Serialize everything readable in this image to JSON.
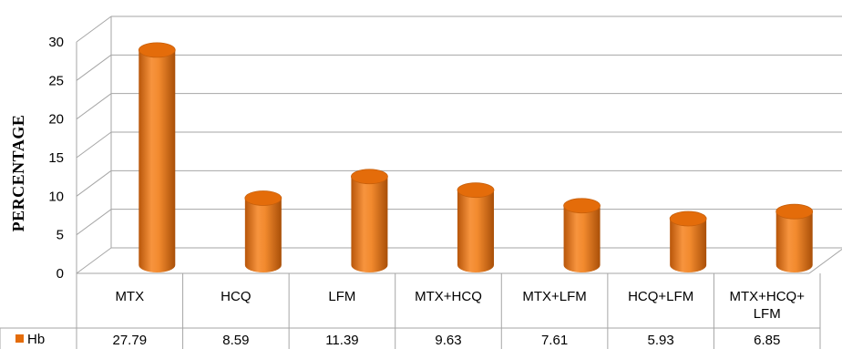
{
  "chart_data": {
    "type": "bar",
    "ylabel": "PERCENTAGE",
    "xlabel": "",
    "ylim": [
      0,
      30
    ],
    "yticks": [
      0,
      5,
      10,
      15,
      20,
      25,
      30
    ],
    "grid": true,
    "categories": [
      "MTX",
      "HCQ",
      "LFM",
      "MTX+HCQ",
      "MTX+LFM",
      "HCQ+LFM",
      "MTX+HCQ+ LFM"
    ],
    "series": [
      {
        "name": "Hb",
        "values": [
          27.79,
          8.59,
          11.39,
          9.63,
          7.61,
          5.93,
          6.85
        ],
        "value_labels": [
          "27.79",
          "8.59",
          "11.39",
          "9.63",
          "7.61",
          "5.93",
          "6.85"
        ]
      }
    ],
    "legend": "data-table",
    "colors": {
      "bar": "#E46C0A",
      "bar_light": "#F79646",
      "bar_dark": "#B8560A",
      "grid": "#A6A6A6"
    }
  }
}
